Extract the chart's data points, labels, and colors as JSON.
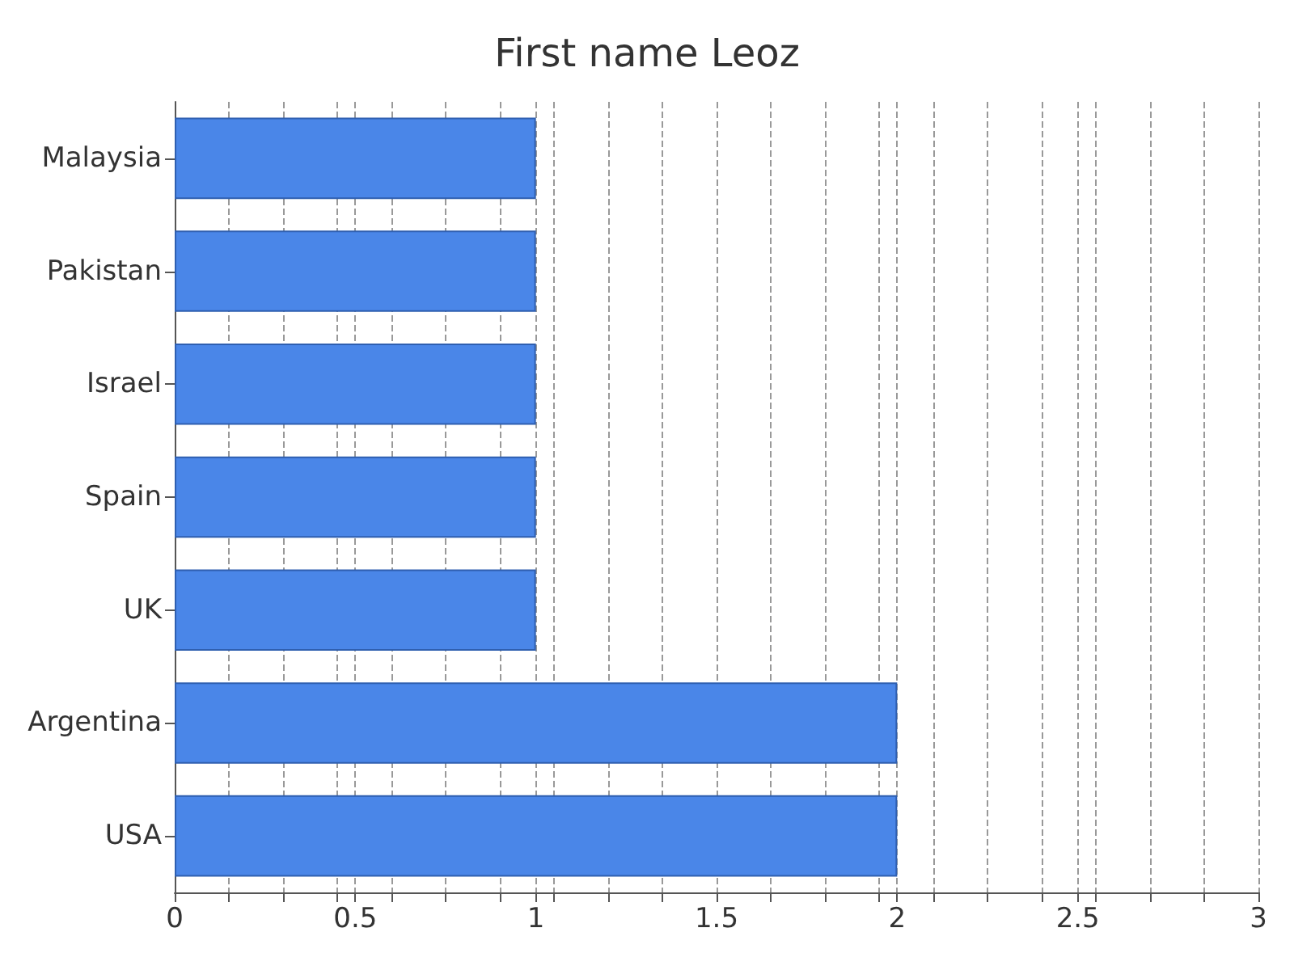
{
  "chart_data": {
    "type": "bar",
    "orientation": "horizontal",
    "title": "First name Leoz",
    "categories": [
      "Malaysia",
      "Pakistan",
      "Israel",
      "Spain",
      "UK",
      "Argentina",
      "USA"
    ],
    "values": [
      1,
      1,
      1,
      1,
      1,
      2,
      2
    ],
    "color": "#4a86e8",
    "xlim": [
      0,
      3
    ],
    "xticks": [
      0,
      {
        "value": 0.15,
        "label": null
      },
      {
        "value": 0.3,
        "label": null
      },
      {
        "value": 0.45,
        "label": null
      },
      0.5,
      {
        "value": 0.6,
        "label": null
      },
      {
        "value": 0.75,
        "label": null
      },
      {
        "value": 0.9,
        "label": null
      },
      1,
      {
        "value": 1.05,
        "label": null
      },
      {
        "value": 1.2,
        "label": null
      },
      {
        "value": 1.35,
        "label": null
      },
      1.5,
      {
        "value": 1.65,
        "label": null
      },
      {
        "value": 1.8,
        "label": null
      },
      {
        "value": 1.95,
        "label": null
      },
      2,
      {
        "value": 2.1,
        "label": null
      },
      {
        "value": 2.25,
        "label": null
      },
      {
        "value": 2.4,
        "label": null
      },
      2.5,
      {
        "value": 2.55,
        "label": null
      },
      {
        "value": 2.7,
        "label": null
      },
      {
        "value": 2.85,
        "label": null
      },
      3
    ],
    "grid": "x"
  }
}
